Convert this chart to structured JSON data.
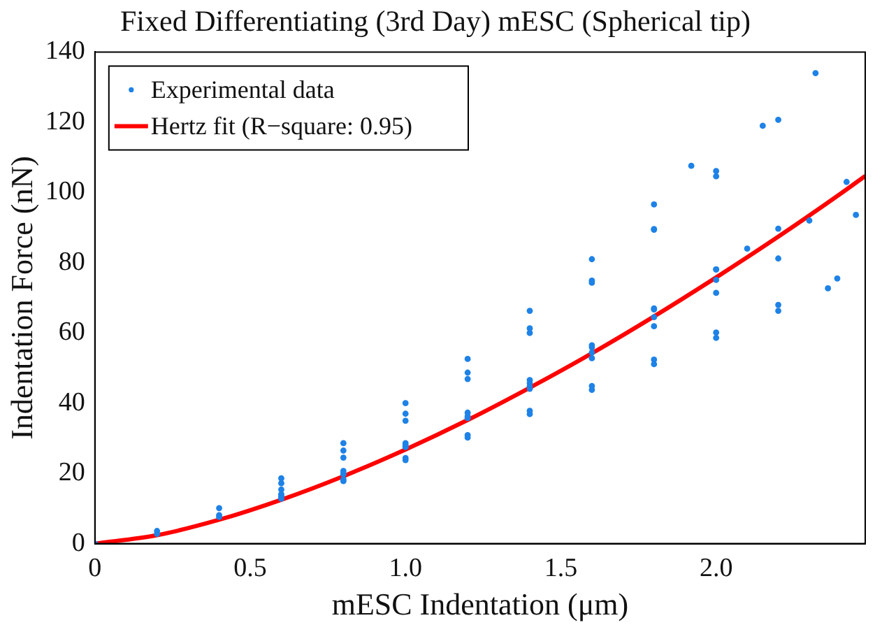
{
  "chart_data": {
    "type": "scatter",
    "title": "Fixed Differentiating (3rd Day) mESC (Spherical tip)",
    "xlabel": "mESC Indentation (μm)",
    "ylabel": "Indentation Force (nN)",
    "xlim": [
      0,
      2.48
    ],
    "xticks": [
      0,
      0.5,
      {
        "value": 1,
        "label": "1.0"
      },
      1.5,
      {
        "value": 2,
        "label": "2.0"
      }
    ],
    "ylim": [
      0,
      140
    ],
    "yticks": [
      0,
      20,
      40,
      60,
      80,
      100,
      120,
      140
    ],
    "grid": false,
    "legend": "top left",
    "series": [
      {
        "name": "Experimental data",
        "marker": "circle",
        "color": "#1e82e6",
        "x": [
          0,
          0.2,
          0.4,
          0.6,
          0.8,
          1,
          1.2,
          1.4,
          1.6,
          1.8,
          1.92,
          0.6,
          0.8,
          1,
          1.2,
          1.4,
          1.6,
          1.8,
          2,
          2.2,
          2.32,
          0.4,
          0.6,
          0.8,
          1,
          1.2,
          1.4,
          1.6,
          1.8,
          2,
          2.15,
          0.2,
          0.4,
          0.6,
          0.8,
          1,
          1.2,
          1.4,
          1.6,
          1.8,
          2,
          2.2,
          2.42,
          0.6,
          0.8,
          1,
          1.2,
          1.4,
          1.6,
          1.8,
          2,
          2.3,
          0.6,
          1,
          1.2,
          1.4,
          1.6,
          1.8,
          2,
          2.2,
          2.45,
          0.8,
          1,
          1.2,
          1.4,
          1.6,
          1.8,
          2,
          2.2,
          2.39,
          0.8,
          1,
          1.2,
          1.4,
          1.6,
          1.8,
          2,
          2.2,
          2.36,
          0.6,
          0.8,
          1,
          1.2,
          1.4,
          1.6,
          1.8,
          2,
          2.1
        ],
        "values": [
          0,
          3.6,
          10.1,
          18.6,
          28.6,
          40,
          52.6,
          66.3,
          81,
          96.6,
          107.6,
          17.2,
          26.5,
          37,
          48.7,
          61.3,
          74.9,
          89.4,
          104.6,
          120.7,
          134,
          8.1,
          15.4,
          24.5,
          35,
          46.9,
          60,
          74.3,
          89.6,
          106.1,
          119,
          2.8,
          7.6,
          13.6,
          20.7,
          28.6,
          37.3,
          46.6,
          56.5,
          67,
          78.1,
          89.7,
          103,
          13.1,
          19.9,
          27.5,
          35.8,
          44.8,
          54.4,
          64.5,
          75.1,
          92,
          14.1,
          28,
          35.8,
          44.1,
          52.8,
          61.9,
          71.4,
          81.2,
          93.6,
          18.3,
          24.4,
          30.9,
          37.8,
          44.9,
          52.4,
          60.1,
          68,
          75.5,
          17.8,
          23.8,
          30.2,
          36.9,
          43.8,
          51.1,
          58.6,
          66.3,
          72.7,
          12.8,
          19.8,
          27.6,
          36.3,
          45.7,
          55.9,
          66.7,
          78.1,
          84
        ]
      },
      {
        "name": "Hertz fit (R−square: 0.95)",
        "type": "line",
        "marker": "none",
        "line_style": "solid",
        "color": "#ff0000",
        "x": [
          0,
          0.2,
          0.4,
          0.6,
          0.8,
          1,
          1.2,
          1.4,
          1.6,
          1.8,
          2,
          2.2,
          2.4,
          2.48
        ],
        "values": [
          0,
          2.4,
          6.8,
          12.5,
          19.2,
          26.8,
          35.2,
          44.4,
          54.2,
          64.7,
          75.8,
          87.4,
          99.6,
          104.7
        ]
      }
    ]
  }
}
